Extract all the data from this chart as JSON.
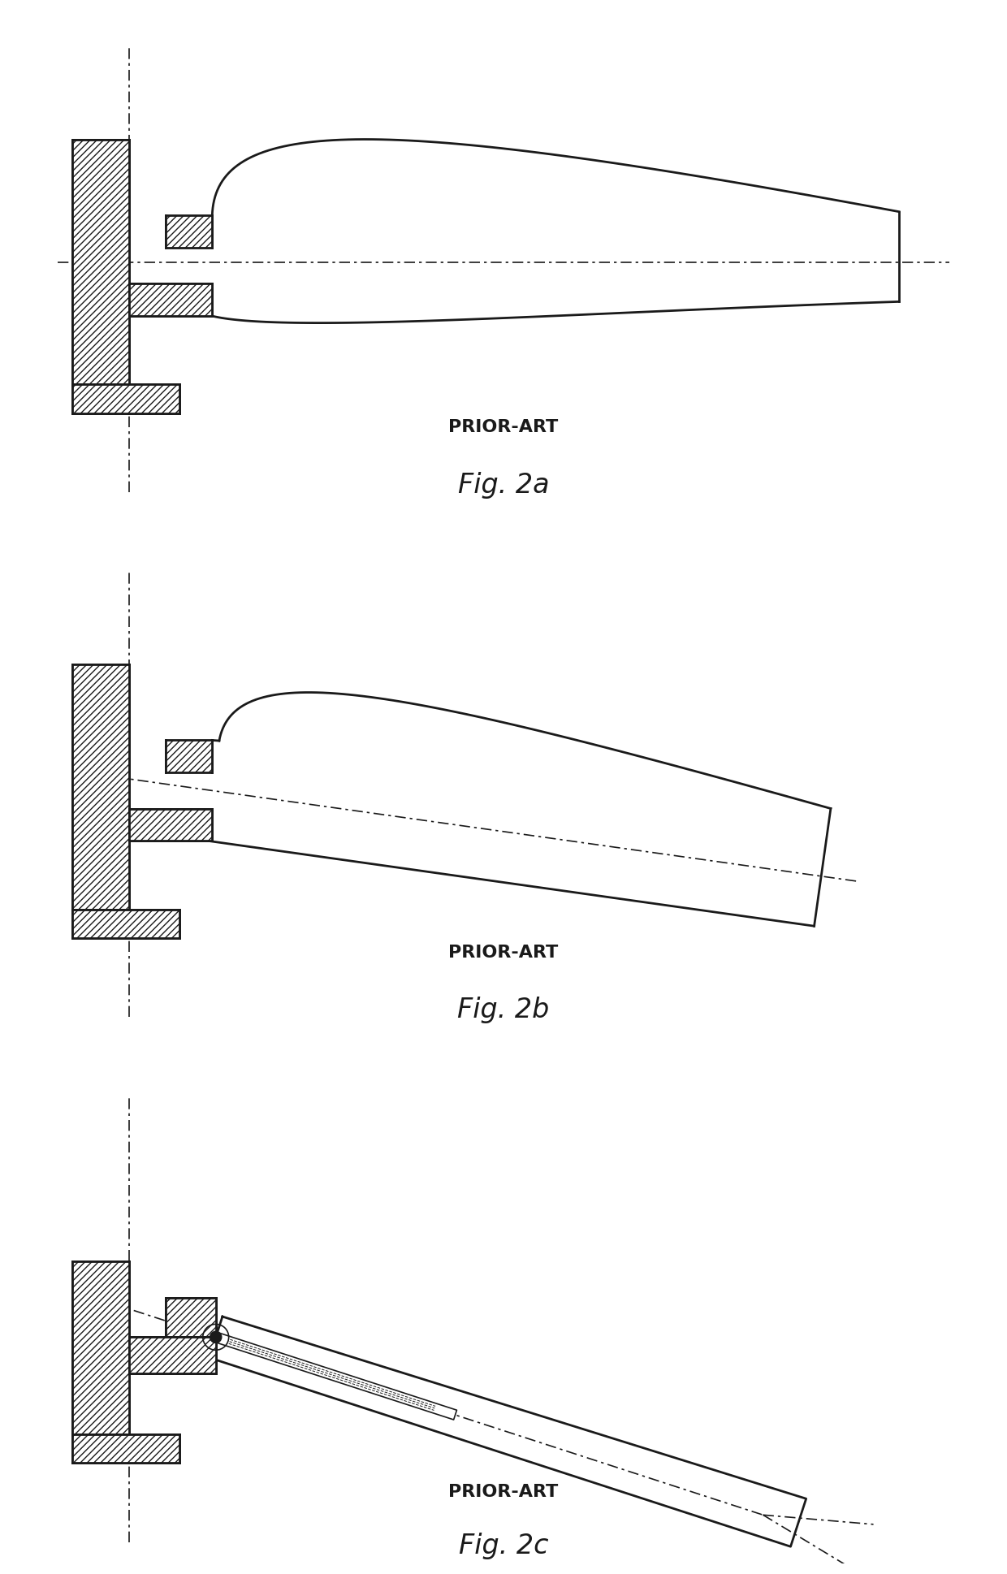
{
  "background_color": "#ffffff",
  "line_color": "#1a1a1a",
  "fig2a_label": "PRIOR-ART",
  "fig2a_sublabel": "Fig. 2a",
  "fig2b_label": "PRIOR-ART",
  "fig2b_sublabel": "Fig. 2b",
  "fig2c_label": "PRIOR-ART",
  "fig2c_sublabel": "Fig. 2c",
  "label_fontsize": 16,
  "sublabel_fontsize": 24,
  "lw_thick": 2.0,
  "lw_thin": 1.2,
  "hatch_density": "////"
}
